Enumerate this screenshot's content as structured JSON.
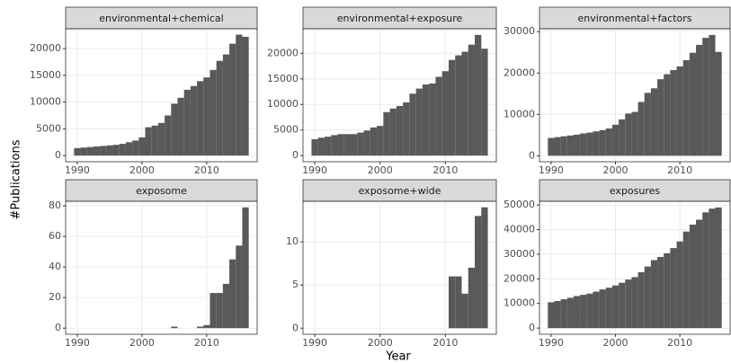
{
  "xlabel": "Year",
  "ylabel": "#Publications",
  "chart_data": [
    {
      "type": "bar",
      "title": "environmental+chemical",
      "color": "#595959",
      "grid": true,
      "x": [
        1990,
        1991,
        1992,
        1993,
        1994,
        1995,
        1996,
        1997,
        1998,
        1999,
        2000,
        2001,
        2002,
        2003,
        2004,
        2005,
        2006,
        2007,
        2008,
        2009,
        2010,
        2011,
        2012,
        2013,
        2014,
        2015,
        2016
      ],
      "values": [
        1400,
        1500,
        1600,
        1700,
        1800,
        1900,
        2000,
        2200,
        2500,
        2800,
        3400,
        5300,
        5600,
        6100,
        7500,
        9700,
        10800,
        12300,
        13000,
        13900,
        14600,
        16000,
        17700,
        18900,
        20900,
        22600,
        22200
      ],
      "xlim": [
        1988.2,
        2017.8
      ],
      "xticks": [
        1990,
        2000,
        2010
      ],
      "ylim": [
        -1150,
        23700
      ],
      "yticks": [
        0,
        5000,
        10000,
        15000,
        20000
      ]
    },
    {
      "type": "bar",
      "title": "environmental+exposure",
      "color": "#595959",
      "grid": true,
      "x": [
        1990,
        1991,
        1992,
        1993,
        1994,
        1995,
        1996,
        1997,
        1998,
        1999,
        2000,
        2001,
        2002,
        2003,
        2004,
        2005,
        2006,
        2007,
        2008,
        2009,
        2010,
        2011,
        2012,
        2013,
        2014,
        2015,
        2016
      ],
      "values": [
        3200,
        3500,
        3700,
        4000,
        4200,
        4200,
        4200,
        4500,
        4900,
        5500,
        5800,
        8500,
        9200,
        9700,
        10400,
        12100,
        13100,
        13900,
        14100,
        15400,
        16500,
        18700,
        19600,
        20300,
        21700,
        23600,
        20900
      ],
      "xlim": [
        1988.2,
        2017.8
      ],
      "xticks": [
        1990,
        2000,
        2010
      ],
      "ylim": [
        -1200,
        24800
      ],
      "yticks": [
        0,
        5000,
        10000,
        15000,
        20000
      ]
    },
    {
      "type": "bar",
      "title": "environmental+factors",
      "color": "#595959",
      "grid": true,
      "x": [
        1990,
        1991,
        1992,
        1993,
        1994,
        1995,
        1996,
        1997,
        1998,
        1999,
        2000,
        2001,
        2002,
        2003,
        2004,
        2005,
        2006,
        2007,
        2008,
        2009,
        2010,
        2011,
        2012,
        2013,
        2014,
        2015,
        2016
      ],
      "values": [
        4300,
        4500,
        4700,
        4900,
        5100,
        5400,
        5600,
        5900,
        6200,
        6600,
        7500,
        8800,
        10200,
        10600,
        13000,
        15200,
        16300,
        18500,
        19700,
        20700,
        21600,
        23100,
        24900,
        26800,
        28500,
        29200,
        25100
      ],
      "xlim": [
        1988.2,
        2017.8
      ],
      "xticks": [
        1990,
        2000,
        2010
      ],
      "ylim": [
        -1450,
        30700
      ],
      "yticks": [
        0,
        10000,
        20000,
        30000
      ]
    },
    {
      "type": "bar",
      "title": "exposome",
      "color": "#595959",
      "grid": true,
      "x": [
        1990,
        1991,
        1992,
        1993,
        1994,
        1995,
        1996,
        1997,
        1998,
        1999,
        2000,
        2001,
        2002,
        2003,
        2004,
        2005,
        2006,
        2007,
        2008,
        2009,
        2010,
        2011,
        2012,
        2013,
        2014,
        2015,
        2016
      ],
      "values": [
        0,
        0,
        0,
        0,
        0,
        0,
        0,
        0,
        0,
        0,
        0,
        0,
        0,
        0,
        0,
        1,
        0,
        0,
        0,
        1,
        2,
        23,
        23,
        29,
        45,
        54,
        79
      ],
      "xlim": [
        1988.2,
        2017.8
      ],
      "xticks": [
        1990,
        2000,
        2010
      ],
      "ylim": [
        -4,
        83
      ],
      "yticks": [
        0,
        20,
        40,
        60,
        80
      ]
    },
    {
      "type": "bar",
      "title": "exposome+wide",
      "color": "#595959",
      "grid": true,
      "x": [
        1990,
        1991,
        1992,
        1993,
        1994,
        1995,
        1996,
        1997,
        1998,
        1999,
        2000,
        2001,
        2002,
        2003,
        2004,
        2005,
        2006,
        2007,
        2008,
        2009,
        2010,
        2011,
        2012,
        2013,
        2014,
        2015,
        2016
      ],
      "values": [
        0,
        0,
        0,
        0,
        0,
        0,
        0,
        0,
        0,
        0,
        0,
        0,
        0,
        0,
        0,
        0,
        0,
        0,
        0,
        0,
        0,
        6,
        6,
        4,
        7,
        13,
        14
      ],
      "xlim": [
        1988.2,
        2017.8
      ],
      "xticks": [
        1990,
        2000,
        2010
      ],
      "ylim": [
        -0.7,
        14.7
      ],
      "yticks": [
        0,
        5,
        10
      ]
    },
    {
      "type": "bar",
      "title": "exposures",
      "color": "#595959",
      "grid": true,
      "x": [
        1990,
        1991,
        1992,
        1993,
        1994,
        1995,
        1996,
        1997,
        1998,
        1999,
        2000,
        2001,
        2002,
        2003,
        2004,
        2005,
        2006,
        2007,
        2008,
        2009,
        2010,
        2011,
        2012,
        2013,
        2014,
        2015,
        2016
      ],
      "values": [
        10500,
        11000,
        11700,
        12300,
        13000,
        13500,
        14000,
        14800,
        15700,
        16400,
        17300,
        18400,
        19700,
        20700,
        22700,
        25000,
        27600,
        28900,
        30400,
        32500,
        35200,
        39200,
        42000,
        44000,
        47000,
        48500,
        49000
      ],
      "xlim": [
        1988.2,
        2017.8
      ],
      "xticks": [
        1990,
        2000,
        2010
      ],
      "ylim": [
        -2500,
        51500
      ],
      "yticks": [
        0,
        10000,
        20000,
        30000,
        40000,
        50000
      ]
    }
  ]
}
